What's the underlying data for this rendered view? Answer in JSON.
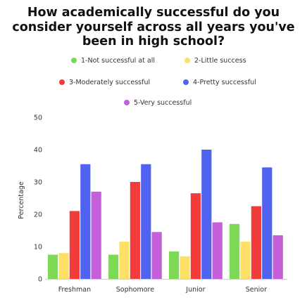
{
  "chart_data": {
    "type": "bar",
    "title": "How academically successful do you consider yourself across all years you've been in high school?",
    "xlabel": "",
    "ylabel": "Percentage",
    "ylim": [
      0,
      50
    ],
    "yticks": [
      "0",
      "10",
      "20",
      "30",
      "40",
      "50"
    ],
    "categories": [
      "Freshman",
      "Sophomore",
      "Junior",
      "Senior"
    ],
    "legend_position": "top",
    "grid": false,
    "series": [
      {
        "name": "1-Not successful at all",
        "color": "#7ed957",
        "values": [
          7.5,
          7.5,
          8.5,
          17
        ]
      },
      {
        "name": "2-Little success",
        "color": "#ffe066",
        "values": [
          8,
          11.5,
          7,
          11.5
        ]
      },
      {
        "name": "3-Moderately successful",
        "color": "#f23b3b",
        "values": [
          21,
          30,
          26.5,
          22.5
        ]
      },
      {
        "name": "4-Pretty successful",
        "color": "#4f63f0",
        "values": [
          35.5,
          35.5,
          40,
          34.5
        ]
      },
      {
        "name": "5-Very successful",
        "color": "#c45fd9",
        "values": [
          27,
          14.5,
          17.5,
          13.5
        ]
      }
    ]
  }
}
